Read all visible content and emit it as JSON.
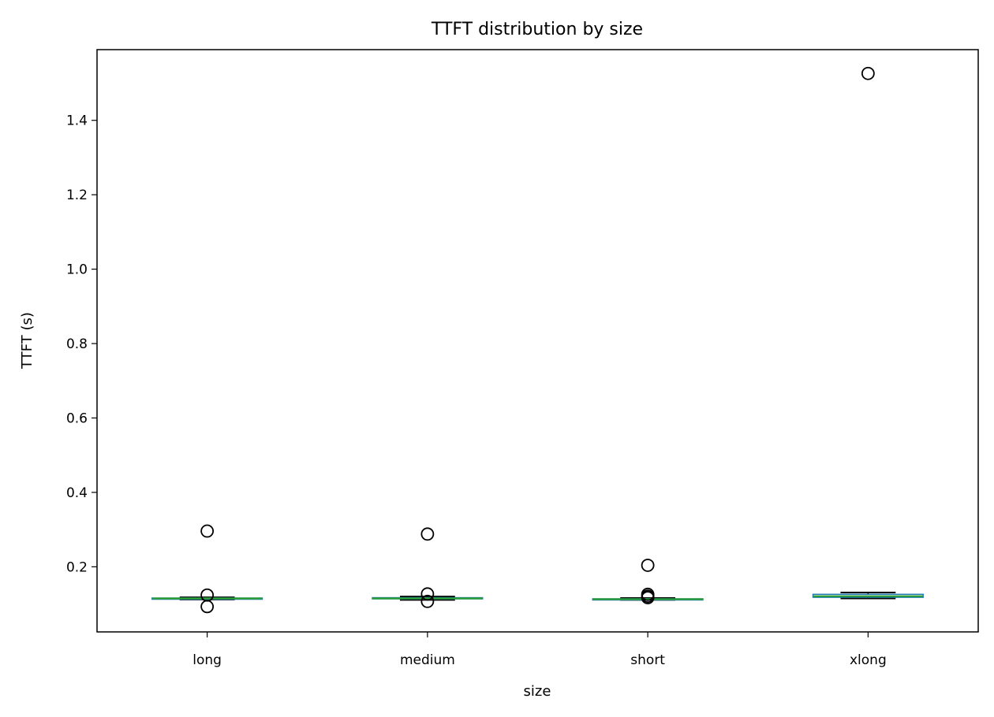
{
  "chart_data": {
    "type": "box",
    "title": "TTFT distribution by size",
    "xlabel": "size",
    "ylabel": "TTFT (s)",
    "ylim": [
      0.025,
      1.59
    ],
    "yticks": [
      0.2,
      0.4,
      0.6,
      0.8,
      1.0,
      1.2,
      1.4
    ],
    "ytick_labels": [
      "0.2",
      "0.4",
      "0.6",
      "0.8",
      "1.0",
      "1.2",
      "1.4"
    ],
    "grid": false,
    "legend": "none",
    "categories": [
      "long",
      "medium",
      "short",
      "xlong"
    ],
    "boxes": [
      {
        "category": "long",
        "whislo": 0.112,
        "q1": 0.114,
        "median": 0.115,
        "q3": 0.116,
        "whishi": 0.118,
        "fliers": [
          0.296,
          0.124,
          0.093
        ]
      },
      {
        "category": "medium",
        "whislo": 0.111,
        "q1": 0.114,
        "median": 0.115,
        "q3": 0.117,
        "whishi": 0.12,
        "fliers": [
          0.288,
          0.127,
          0.107
        ]
      },
      {
        "category": "short",
        "whislo": 0.111,
        "q1": 0.112,
        "median": 0.113,
        "q3": 0.114,
        "whishi": 0.116,
        "fliers": [
          0.204,
          0.126,
          0.121,
          0.117
        ]
      },
      {
        "category": "xlong",
        "whislo": 0.115,
        "q1": 0.118,
        "median": 0.121,
        "q3": 0.126,
        "whishi": 0.131,
        "fliers": [
          1.526
        ]
      }
    ],
    "colors": {
      "box": "#1f77b4",
      "median": "#2ca02c",
      "whisker": "#000000",
      "flier": "#000000"
    }
  }
}
